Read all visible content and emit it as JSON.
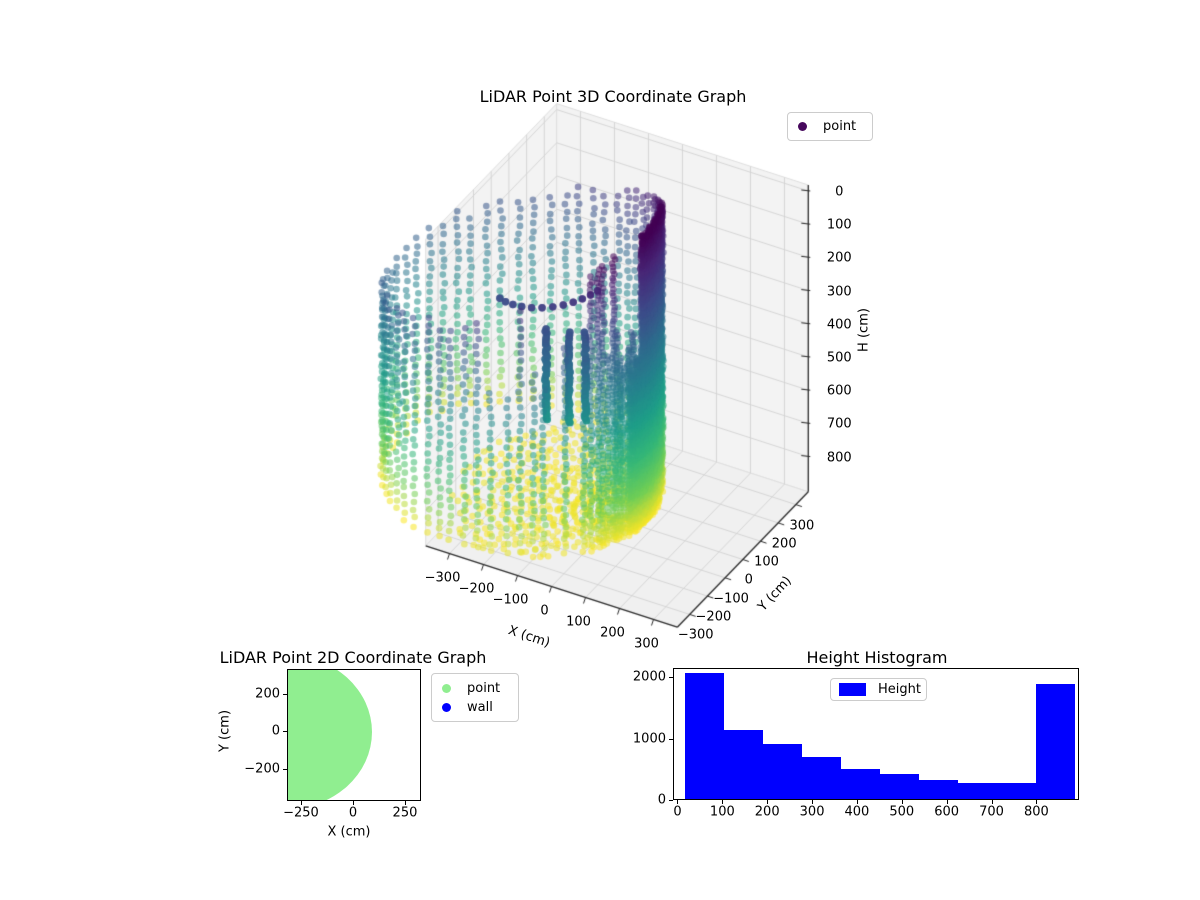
{
  "figure_background": "#ffffff",
  "chart_data": [
    {
      "id": "plot3d",
      "type": "scatter3d",
      "title": "LiDAR Point 3D Coordinate Graph",
      "xlabel": "X (cm)",
      "ylabel": "Y (cm)",
      "zlabel": "H (cm)",
      "xticks": [
        -300,
        -200,
        -100,
        0,
        100,
        200,
        300
      ],
      "yticks": [
        -300,
        -200,
        -100,
        0,
        100,
        200,
        300
      ],
      "zticks": [
        0,
        100,
        200,
        300,
        400,
        500,
        600,
        700,
        800
      ],
      "xlim": [
        -370,
        370
      ],
      "ylim": [
        -370,
        370
      ],
      "zlim": [
        -18,
        906
      ],
      "z_axis_inverted": true,
      "legend": [
        {
          "label": "point",
          "marker_color": "#46085c"
        }
      ],
      "colormap": "viridis",
      "colormap_stops": [
        [
          0,
          "#440154"
        ],
        [
          0.125,
          "#482878"
        ],
        [
          0.25,
          "#3e4a89"
        ],
        [
          0.375,
          "#31688e"
        ],
        [
          0.5,
          "#26828e"
        ],
        [
          0.625,
          "#1f9e89"
        ],
        [
          0.75,
          "#35b779"
        ],
        [
          0.875,
          "#6ece58"
        ],
        [
          1,
          "#fde725"
        ]
      ],
      "points_summary": {
        "structure": "vertical point columns forming a cylindrical room wall scanned by a LiDAR sensor at the origin",
        "wall_center_cm": [
          -280,
          0
        ],
        "wall_radius_cm": 365,
        "height_range_cm": [
          17,
          887
        ],
        "ray_count": 92,
        "color_encodes": "height H: dark purple at H=0 (top, inverted axis) to yellow at H=887 (bottom)",
        "near_right_wall": "very dense / solid shading (close to sensor)",
        "far_left_wall": "sparse columns starting near H=330",
        "front_columns": "partial columns with gaps, many starting between H=235 and H=420",
        "floor_points": "yellow points near H=880 filling the bottom of the cylinder",
        "marker_alpha": 0.55
      },
      "interior_features": {
        "dot_arc": "short diagonal arc of dark dots inside the cylinder near H=200-260",
        "poles": "three saturated dark vertical columns near the cylinder center, H=250-540"
      }
    },
    {
      "id": "plot2d",
      "type": "scatter",
      "title": "LiDAR Point 2D Coordinate Graph",
      "xlabel": "X (cm)",
      "ylabel": "Y (cm)",
      "xticks": [
        -250,
        0,
        250
      ],
      "yticks": [
        -200,
        0,
        200
      ],
      "xlim": [
        -317,
        327
      ],
      "ylim": [
        -373,
        331
      ],
      "legend": [
        {
          "label": "point",
          "marker_color": "#90ee90"
        },
        {
          "label": "wall",
          "marker_color": "#0000ff"
        }
      ],
      "region": {
        "shape": "dense filled disc of scatter points, clipped by axes limits",
        "center_cm": [
          -326,
          0
        ],
        "radius_cm": 411,
        "color": "#90ee90"
      }
    },
    {
      "id": "histogram",
      "type": "bar",
      "title": "Height Histogram",
      "legend": [
        {
          "label": "Height",
          "marker_color": "#0000ff"
        }
      ],
      "bar_color": "#0000ff",
      "bin_edges": [
        17,
        104,
        191,
        278,
        365,
        452,
        539,
        626,
        713,
        800,
        887
      ],
      "counts": [
        2050,
        1130,
        900,
        680,
        490,
        400,
        310,
        260,
        260,
        1880
      ],
      "xticks": [
        0,
        100,
        200,
        300,
        400,
        500,
        600,
        700,
        800
      ],
      "yticks": [
        0,
        1000,
        2000
      ],
      "xlim": [
        -10,
        895
      ],
      "ylim": [
        0,
        2152
      ]
    }
  ]
}
